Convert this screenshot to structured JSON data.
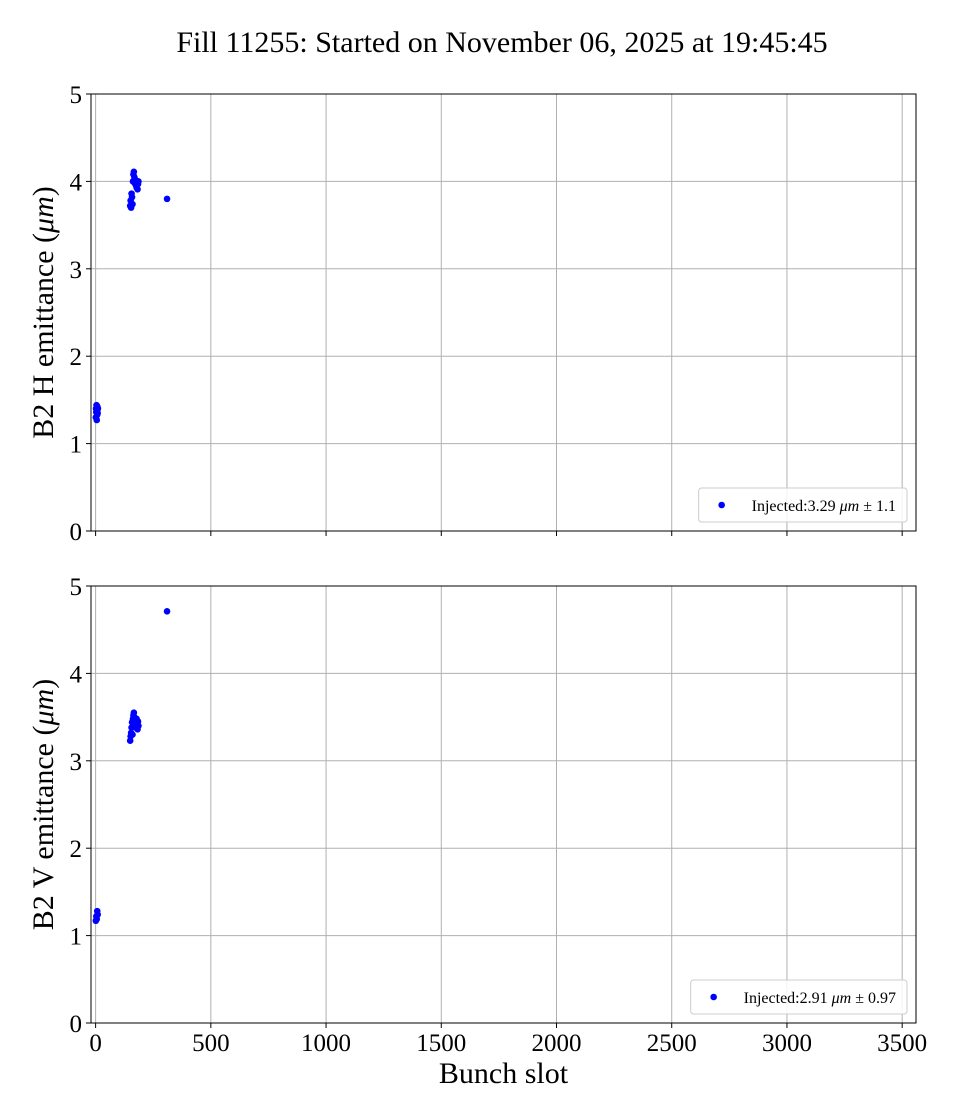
{
  "figure_title": "Fill 11255: Started on November 06, 2025 at 19:45:45",
  "marker_color": "#0000ff",
  "grid_color": "#b0b0b0",
  "chart_data": [
    {
      "type": "scatter",
      "title": "",
      "xlabel": "",
      "ylabel_prefix": "B2 H emittance (",
      "ylabel_unit": "μm",
      "ylabel_suffix": ")",
      "xlim": [
        -20,
        3560
      ],
      "ylim": [
        0,
        5
      ],
      "xticks": [
        0,
        500,
        1000,
        1500,
        2000,
        2500,
        3000,
        3500
      ],
      "show_xtick_labels": false,
      "yticks": [
        0,
        1,
        2,
        3,
        4,
        5
      ],
      "ytick_labels": [
        "0",
        "1",
        "2",
        "3",
        "4",
        "5"
      ],
      "grid": true,
      "legend": {
        "position": "lower-right",
        "prefix": "Injected:3.29 ",
        "unit": "μm",
        "suffix": " ± 1.1"
      },
      "series": [
        {
          "legend_label": "Injected:3.29 μm ± 1.1",
          "color": "#0000ff",
          "x": [
            1,
            2,
            3,
            4,
            5,
            6,
            7,
            8,
            9,
            10,
            150,
            152,
            154,
            156,
            158,
            160,
            162,
            164,
            166,
            168,
            170,
            172,
            174,
            176,
            178,
            180,
            182,
            184,
            186,
            310
          ],
          "y": [
            1.3,
            1.4,
            1.36,
            1.44,
            1.27,
            1.38,
            1.33,
            1.42,
            1.35,
            1.4,
            3.72,
            3.78,
            3.7,
            3.86,
            3.82,
            3.74,
            4.0,
            4.08,
            4.11,
            4.05,
            3.98,
            4.02,
            3.96,
            4.01,
            3.93,
            3.99,
            3.91,
            3.97,
            4.0,
            3.8
          ]
        }
      ]
    },
    {
      "type": "scatter",
      "title": "",
      "xlabel": "Bunch slot",
      "ylabel_prefix": "B2 V emittance (",
      "ylabel_unit": "μm",
      "ylabel_suffix": ")",
      "xlim": [
        -20,
        3560
      ],
      "ylim": [
        0,
        5
      ],
      "xticks": [
        0,
        500,
        1000,
        1500,
        2000,
        2500,
        3000,
        3500
      ],
      "xtick_labels": [
        "0",
        "500",
        "1000",
        "1500",
        "2000",
        "2500",
        "3000",
        "3500"
      ],
      "show_xtick_labels": true,
      "yticks": [
        0,
        1,
        2,
        3,
        4,
        5
      ],
      "ytick_labels": [
        "0",
        "1",
        "2",
        "3",
        "4",
        "5"
      ],
      "grid": true,
      "legend": {
        "position": "lower-right",
        "prefix": "Injected:2.91 ",
        "unit": "μm",
        "suffix": " ± 0.97"
      },
      "series": [
        {
          "legend_label": "Injected:2.91 μm ± 0.97",
          "color": "#0000ff",
          "x": [
            1,
            3,
            5,
            7,
            9,
            150,
            152,
            154,
            156,
            158,
            160,
            162,
            164,
            166,
            168,
            170,
            172,
            174,
            176,
            178,
            180,
            182,
            184,
            186,
            310
          ],
          "y": [
            1.17,
            1.22,
            1.19,
            1.28,
            1.24,
            3.23,
            3.28,
            3.32,
            3.38,
            3.44,
            3.3,
            3.48,
            3.52,
            3.55,
            3.5,
            3.46,
            3.4,
            3.38,
            3.44,
            3.48,
            3.42,
            3.36,
            3.45,
            3.4,
            4.71
          ]
        }
      ]
    }
  ]
}
